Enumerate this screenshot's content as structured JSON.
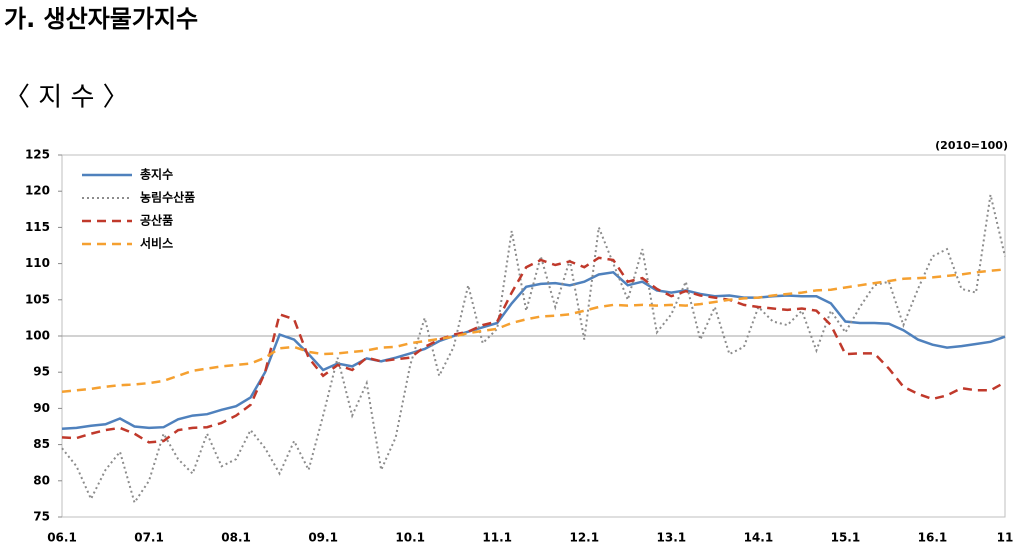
{
  "chart_data": {
    "type": "line",
    "title": "가. 생산자물가지수",
    "subtitle": "〈 지 수 〉",
    "unit_note": "(2010=100)",
    "categories": [
      "06.1",
      null,
      null,
      null,
      null,
      null,
      "07.1",
      null,
      null,
      null,
      null,
      null,
      "08.1",
      null,
      null,
      null,
      null,
      null,
      "09.1",
      null,
      null,
      null,
      null,
      null,
      "10.1",
      null,
      null,
      null,
      null,
      null,
      "11.1",
      null,
      null,
      null,
      null,
      null,
      "12.1",
      null,
      null,
      null,
      null,
      null,
      "13.1",
      null,
      null,
      null,
      null,
      null,
      "14.1",
      null,
      null,
      null,
      null,
      null,
      "15.1",
      null,
      null,
      null,
      null,
      null,
      "16.1",
      null,
      null,
      null,
      null,
      "11"
    ],
    "series": [
      {
        "name": "총지수",
        "color": "#4f81bd",
        "dash": "solid",
        "values": [
          87.2,
          87.3,
          87.6,
          87.8,
          88.6,
          87.5,
          87.3,
          87.4,
          88.5,
          89.0,
          89.2,
          89.8,
          90.3,
          91.5,
          95.0,
          100.2,
          99.5,
          97.5,
          95.3,
          96.2,
          95.8,
          96.9,
          96.5,
          97.0,
          97.6,
          98.2,
          99.3,
          100.0,
          100.6,
          101.2,
          101.8,
          104.5,
          106.8,
          107.2,
          107.3,
          107.0,
          107.5,
          108.5,
          108.8,
          107.0,
          107.5,
          106.3,
          106.0,
          106.3,
          105.8,
          105.5,
          105.6,
          105.3,
          105.3,
          105.5,
          105.6,
          105.5,
          105.5,
          104.5,
          102.0,
          101.8,
          101.8,
          101.7,
          100.8,
          99.5,
          98.8,
          98.4,
          98.6,
          98.9,
          99.2,
          99.9
        ]
      },
      {
        "name": "농림수산품",
        "color": "#8c8c8c",
        "dash": "dotted",
        "values": [
          84.5,
          82,
          77.5,
          81.5,
          84,
          77,
          80,
          86.5,
          83,
          81,
          86.5,
          82,
          83,
          87,
          84.5,
          81,
          85.5,
          81.5,
          89,
          97,
          89,
          93.5,
          81.5,
          86,
          96,
          102.5,
          94.5,
          98.5,
          107,
          99,
          101,
          114.5,
          103.5,
          111,
          104,
          110.5,
          99.5,
          115,
          110,
          105,
          112,
          100.5,
          103,
          107.5,
          99.5,
          104,
          97.5,
          98.5,
          104,
          102,
          101.5,
          103.5,
          98,
          103.5,
          100.5,
          104,
          107,
          107.5,
          101.5,
          106.5,
          111,
          112,
          106.5,
          106,
          119.5,
          111
        ]
      },
      {
        "name": "공산품",
        "color": "#c0392b",
        "dash": "dashed",
        "values": [
          86,
          85.9,
          86.5,
          87,
          87.3,
          86.5,
          85.3,
          85.5,
          87,
          87.3,
          87.4,
          88,
          89,
          90.5,
          95,
          103,
          102.3,
          97,
          94.5,
          96,
          95.3,
          97,
          96.5,
          96.8,
          97,
          98.5,
          99.5,
          100.2,
          100.6,
          101.5,
          102,
          106,
          109.5,
          110.5,
          109.8,
          110.3,
          109.5,
          110.8,
          110.5,
          107.5,
          108,
          106.5,
          105.5,
          106.2,
          105.6,
          105.3,
          105,
          104.3,
          104,
          103.8,
          103.6,
          103.8,
          103.5,
          101.5,
          97.5,
          97.6,
          97.6,
          95.5,
          93,
          92,
          91.3,
          91.8,
          92.8,
          92.5,
          92.5,
          93.6
        ]
      },
      {
        "name": "서비스",
        "color": "#f5a030",
        "dash": "dashed",
        "values": [
          92.3,
          92.5,
          92.7,
          93,
          93.2,
          93.3,
          93.5,
          93.8,
          94.5,
          95.2,
          95.5,
          95.8,
          96,
          96.2,
          97,
          98.3,
          98.5,
          97.8,
          97.5,
          97.6,
          97.8,
          98,
          98.4,
          98.5,
          99,
          99.3,
          99.6,
          99.9,
          100.4,
          100.7,
          101,
          101.8,
          102.3,
          102.7,
          102.8,
          103,
          103.5,
          104,
          104.3,
          104.2,
          104.3,
          104.2,
          104.3,
          104.2,
          104.4,
          104.7,
          105,
          105.2,
          105.3,
          105.6,
          105.8,
          106,
          106.3,
          106.4,
          106.7,
          107,
          107.3,
          107.6,
          107.9,
          108,
          108.1,
          108.3,
          108.5,
          108.8,
          109,
          109.2
        ]
      }
    ],
    "ylim": [
      75,
      125
    ],
    "yticks": [
      75,
      80,
      85,
      90,
      95,
      100,
      105,
      110,
      115,
      120,
      125
    ],
    "reference_line": 100,
    "legend": "upper left"
  }
}
